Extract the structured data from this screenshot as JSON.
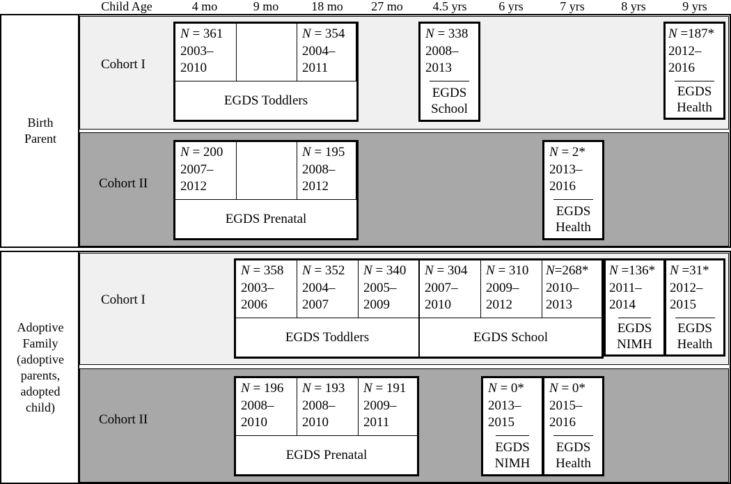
{
  "header": {
    "child_age_label": "Child Age",
    "ages": [
      "4 mo",
      "9 mo",
      "18 mo",
      "27 mo",
      "4.5 yrs",
      "6 yrs",
      "7 yrs",
      "8 yrs",
      "9 yrs"
    ]
  },
  "groups": [
    {
      "label": "Birth Parent",
      "cohorts": [
        {
          "label": "Cohort I",
          "studies": [
            {
              "cells": [
                {
                  "n": "361",
                  "period": [
                    "2003–",
                    "2010"
                  ]
                },
                {
                  "n": "",
                  "period": []
                },
                {
                  "n": "354",
                  "period": [
                    "2004–",
                    "2011"
                  ]
                }
              ],
              "name": "EGDS Toddlers"
            },
            {
              "cells": [
                {
                  "n": "338",
                  "period": [
                    "2008–",
                    "2013"
                  ]
                }
              ],
              "name": "EGDS School"
            },
            {
              "cells": [
                {
                  "n": "187*",
                  "period": [
                    "2012–",
                    "2016"
                  ]
                }
              ],
              "name": "EGDS Health"
            }
          ]
        },
        {
          "label": "Cohort II",
          "studies": [
            {
              "cells": [
                {
                  "n": "200",
                  "period": [
                    "2007–",
                    "2012"
                  ]
                },
                {
                  "n": "",
                  "period": []
                },
                {
                  "n": "195",
                  "period": [
                    "2008–",
                    "2012"
                  ]
                }
              ],
              "name": "EGDS Prenatal"
            },
            {
              "cells": [
                {
                  "n": "2*",
                  "period": [
                    "2013–",
                    "2016"
                  ]
                }
              ],
              "name": "EGDS Health"
            }
          ]
        }
      ]
    },
    {
      "label": "Adoptive Family (adoptive parents, adopted child)",
      "cohorts": [
        {
          "label": "Cohort I",
          "studies": [
            {
              "cells": [
                {
                  "n": "358",
                  "period": [
                    "2003–",
                    "2006"
                  ]
                },
                {
                  "n": "352",
                  "period": [
                    "2004–",
                    "2007"
                  ]
                },
                {
                  "n": "340",
                  "period": [
                    "2005–",
                    "2009"
                  ]
                },
                {
                  "n": "304",
                  "period": [
                    "2007–",
                    "2010"
                  ]
                },
                {
                  "n": "310",
                  "period": [
                    "2009–",
                    "2012"
                  ]
                },
                {
                  "n": "268*",
                  "period": [
                    "2010–",
                    "2013"
                  ]
                }
              ],
              "names": [
                "EGDS Toddlers",
                "EGDS School"
              ]
            },
            {
              "cells": [
                {
                  "n": "136*",
                  "period": [
                    "2011–",
                    "2014"
                  ]
                }
              ],
              "name": "EGDS NIMH"
            },
            {
              "cells": [
                {
                  "n": "31*",
                  "period": [
                    "2012–",
                    "2015"
                  ]
                }
              ],
              "name": "EGDS Health"
            }
          ]
        },
        {
          "label": "Cohort II",
          "studies": [
            {
              "cells": [
                {
                  "n": "196",
                  "period": [
                    "2008–",
                    "2010"
                  ]
                },
                {
                  "n": "193",
                  "period": [
                    "2008–",
                    "2010"
                  ]
                },
                {
                  "n": "191",
                  "period": [
                    "2009–",
                    "2011"
                  ]
                }
              ],
              "name": "EGDS Prenatal"
            },
            {
              "cells": [
                {
                  "n": "0*",
                  "period": [
                    "2013–",
                    "2015"
                  ]
                }
              ],
              "name": "EGDS NIMH"
            },
            {
              "cells": [
                {
                  "n": "0*",
                  "period": [
                    "2015–",
                    "2016"
                  ]
                }
              ],
              "name": "EGDS Health"
            }
          ]
        }
      ]
    }
  ],
  "n_symbol": "N",
  "colors": {
    "cohort1_band": "#f0f0f0",
    "cohort2_band": "#a8a8a8",
    "border": "#000000"
  }
}
